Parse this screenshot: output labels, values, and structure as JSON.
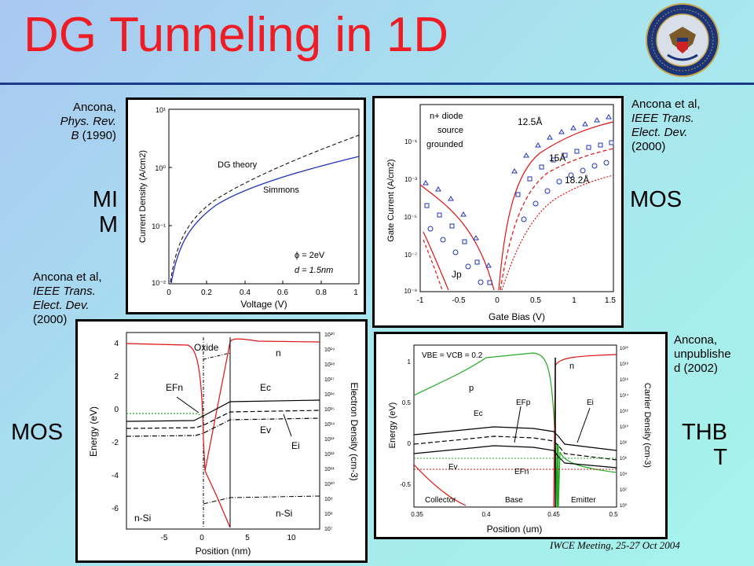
{
  "slide": {
    "title": "DG Tunneling in 1D",
    "footer": "IWCE Meeting, 25-27 Oct 2004",
    "colors": {
      "title": "#ee1c25",
      "rule": "#1a3a8a",
      "red_curve": "#dd1111",
      "blue_curve": "#2233bb",
      "green_curve": "#22aa22"
    }
  },
  "labels": {
    "mim": [
      "MI",
      "M"
    ],
    "mos_top": "MOS",
    "mos_bottom": "MOS",
    "thbt": [
      "THB",
      "T"
    ]
  },
  "citations": {
    "mim": {
      "author": "Ancona,",
      "journal": "Phys. Rev.",
      "vol": "B",
      "year": "(1990)"
    },
    "mos_top": {
      "author": "Ancona et al,",
      "journal1": "IEEE Trans.",
      "journal2": "Elect. Dev.",
      "year": "(2000)"
    },
    "mos_bottom": {
      "author": "Ancona et al,",
      "journal1": "IEEE Trans.",
      "journal2": "Elect. Dev.",
      "year": "(2000)"
    },
    "thbt": {
      "line1": "Ancona,",
      "line2": "unpublishe",
      "line3": "d (2002)"
    }
  },
  "panels": {
    "mim": {
      "xlabel": "Voltage (V)",
      "ylabel": "Current Density (A/cm2)",
      "xticks": [
        "0",
        "0.2",
        "0.4",
        "0.6",
        "0.8",
        "1"
      ],
      "yticks": [
        "10¹",
        "10⁰",
        "10⁻¹",
        "10⁻²"
      ],
      "annot_dg": "DG theory",
      "annot_simmons": "Simmons",
      "annot_phi": "ϕ = 2eV",
      "annot_d": "d = 1.5nm"
    },
    "mos_top": {
      "xlabel": "Gate Bias (V)",
      "ylabel": "Gate Current (A/cm2)",
      "xticks": [
        "-1",
        "-0.5",
        "0",
        "0.5",
        "1",
        "1.5"
      ],
      "yticks": [
        "10⁻¹",
        "10⁻³",
        "10⁻⁵",
        "10⁻⁷",
        "10⁻⁹"
      ],
      "annot_diode1": "n+ diode",
      "annot_diode2": "source",
      "annot_diode3": "grounded",
      "annot_t1": "12.5Å",
      "annot_t2": "15Å",
      "annot_t3": "18.2Å",
      "annot_jp": "Jp"
    },
    "mos_bottom": {
      "xlabel": "Position (nm)",
      "ylabel": "Energy (eV)",
      "ylabel_right": "Electron Density (cm-3)",
      "xticks": [
        "-5",
        "0",
        "5",
        "10"
      ],
      "yticks": [
        "4",
        "2",
        "0",
        "-2",
        "-4",
        "-6"
      ],
      "rticks": [
        "10²⁰",
        "10¹⁹",
        "10¹⁸",
        "10¹⁷",
        "10¹⁶",
        "10¹⁵",
        "10¹⁴",
        "10¹³",
        "10¹²",
        "10¹¹",
        "10¹⁰",
        "10⁹",
        "10⁸",
        "10⁷"
      ],
      "annot_oxide": "Oxide",
      "annot_n": "n",
      "annot_efn": "EFn",
      "annot_ec": "Ec",
      "annot_ev": "Ev",
      "annot_ei": "Ei",
      "annot_nsi_left": "n-Si",
      "annot_nsi_right": "n-Si"
    },
    "thbt": {
      "xlabel": "Position (um)",
      "ylabel": "Energy (eV)",
      "ylabel_right": "Carrier Density (cm-3)",
      "xticks": [
        "0.35",
        "0.4",
        "0.45",
        "0.5"
      ],
      "yticks": [
        "1",
        "0.5",
        "0",
        "-0.5"
      ],
      "rticks": [
        "10²⁰",
        "10¹⁸",
        "10¹⁶",
        "10¹⁴",
        "10¹²",
        "10¹⁰",
        "10⁸",
        "10⁶",
        "10⁴",
        "10²",
        "10⁰"
      ],
      "annot_vbe": "VBE = VCB = 0.2",
      "annot_p": "p",
      "annot_n": "n",
      "annot_efp": "EFp",
      "annot_ec": "Ec",
      "annot_ei": "Ei",
      "annot_ev": "Ev",
      "annot_efn": "EFn",
      "annot_collector": "Collector",
      "annot_base": "Base",
      "annot_emitter": "Emitter"
    }
  }
}
